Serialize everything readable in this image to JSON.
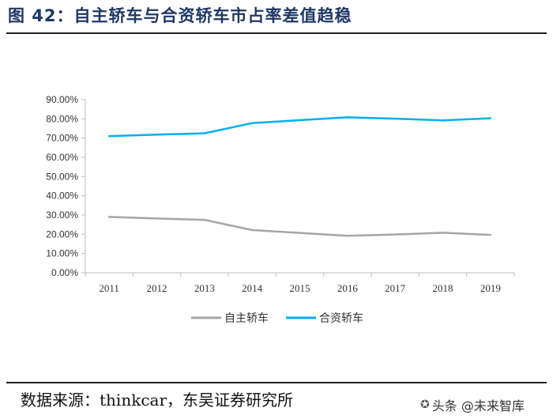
{
  "figure": {
    "title": "图 42：自主轿车与合资轿车市占率差值趋稳",
    "source": "数据来源：thinkcar，东吴证券研究所",
    "watermark": "头条 @未来智库"
  },
  "colors": {
    "title": "#1f3864",
    "series_1": "#a6a6a6",
    "series_2": "#00b0f0",
    "axis": "#bfbfbf"
  },
  "chart_data": {
    "type": "line",
    "title": "",
    "xlabel": "",
    "ylabel": "",
    "x": [
      "2011",
      "2012",
      "2013",
      "2014",
      "2015",
      "2016",
      "2017",
      "2018",
      "2019"
    ],
    "ylim": [
      0,
      90
    ],
    "yticks": [
      "0.00%",
      "10.00%",
      "20.00%",
      "30.00%",
      "40.00%",
      "50.00%",
      "60.00%",
      "70.00%",
      "80.00%",
      "90.00%"
    ],
    "series": [
      {
        "name": "自主轿车",
        "values": [
          29.0,
          28.2,
          27.5,
          22.2,
          20.7,
          19.2,
          19.9,
          20.8,
          19.7
        ]
      },
      {
        "name": "合资轿车",
        "values": [
          71.0,
          71.8,
          72.5,
          77.8,
          79.3,
          80.8,
          80.1,
          79.2,
          80.3
        ]
      }
    ],
    "grid": false,
    "legend_position": "bottom"
  }
}
